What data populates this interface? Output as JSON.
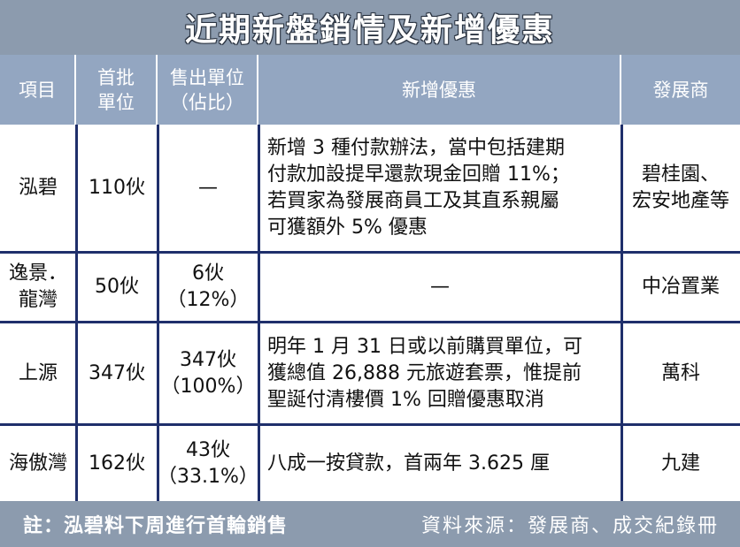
{
  "title": "近期新盤銷情及新增優惠",
  "headers": {
    "item": "項目",
    "first_batch_line1": "首批",
    "first_batch_line2": "單位",
    "sold_line1": "售出單位",
    "sold_line2": "（佔比）",
    "offer": "新增優惠",
    "developer": "發展商"
  },
  "rows": [
    {
      "item": "泓碧",
      "first_batch": "110伙",
      "sold": "—",
      "sold_ratio": "",
      "offer_lines": [
        "新增 3 種付款辦法，當中包括建期",
        "付款加設提早還款現金回贈 11%；",
        "若買家為發展商員工及其直系親屬",
        "可獲額外 5% 優惠"
      ],
      "developer_lines": [
        "碧桂園、",
        "宏安地產等"
      ]
    },
    {
      "item_lines": [
        "逸景．",
        "龍灣"
      ],
      "first_batch": "50伙",
      "sold": "6伙",
      "sold_ratio": "（12%）",
      "offer_lines": [
        "—"
      ],
      "developer_lines": [
        "中冶置業"
      ]
    },
    {
      "item": "上源",
      "first_batch": "347伙",
      "sold": "347伙",
      "sold_ratio": "（100%）",
      "offer_lines": [
        "明年 1 月 31 日或以前購買單位，可",
        "獲總值 26,888 元旅遊套票，惟提前",
        "聖誕付清樓價 1% 回贈優惠取消"
      ],
      "developer_lines": [
        "萬科"
      ]
    },
    {
      "item": "海傲灣",
      "first_batch": "162伙",
      "sold": "43伙",
      "sold_ratio": "（33.1%）",
      "offer_lines": [
        "八成一按貸款，首兩年 3.625 厘"
      ],
      "developer_lines": [
        "九建"
      ]
    }
  ],
  "footer": {
    "note": "註：泓碧料下周進行首輪銷售",
    "source": "資料來源：發展商、成交紀錄冊"
  },
  "colors": {
    "banner": "#8c9bae",
    "header": "#93a6c1",
    "grid": "#1f2f6b"
  }
}
